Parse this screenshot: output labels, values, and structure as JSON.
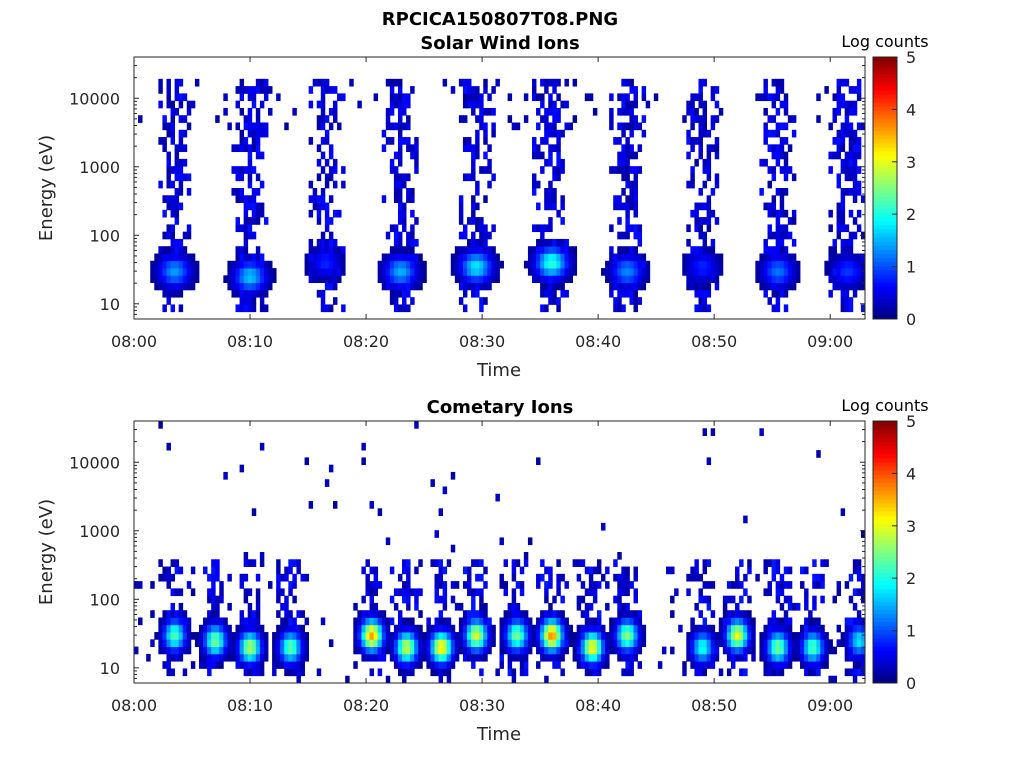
{
  "figure_title": "RPCICA150807T08.PNG",
  "chart_data": [
    {
      "type": "heatmap",
      "title": "Solar Wind Ions",
      "xlabel": "Time",
      "ylabel": "Energy (eV)",
      "x_ticks": [
        "08:00",
        "08:10",
        "08:20",
        "08:30",
        "08:40",
        "08:50",
        "09:00"
      ],
      "x_range": [
        "08:00",
        "09:03"
      ],
      "y_scale": "log",
      "y_ticks": [
        "10",
        "100",
        "1000",
        "10000"
      ],
      "y_range": [
        6,
        40000
      ],
      "colorbar": {
        "label": "Log counts",
        "ticks": [
          "0",
          "1",
          "2",
          "3",
          "4",
          "5"
        ],
        "range": [
          0,
          5
        ],
        "colormap": "jet"
      },
      "grid": false,
      "bursts": [
        {
          "t": 3.5,
          "peak_energy": 30,
          "peak_log_counts": 1.4
        },
        {
          "t": 10.0,
          "peak_energy": 25,
          "peak_log_counts": 1.6
        },
        {
          "t": 16.5,
          "peak_energy": 40,
          "peak_log_counts": 0.8
        },
        {
          "t": 23.0,
          "peak_energy": 30,
          "peak_log_counts": 1.5
        },
        {
          "t": 29.5,
          "peak_energy": 35,
          "peak_log_counts": 1.8
        },
        {
          "t": 36.0,
          "peak_energy": 40,
          "peak_log_counts": 2.1
        },
        {
          "t": 42.5,
          "peak_energy": 30,
          "peak_log_counts": 1.3
        },
        {
          "t": 49.0,
          "peak_energy": 35,
          "peak_log_counts": 0.8
        },
        {
          "t": 55.5,
          "peak_energy": 30,
          "peak_log_counts": 1.2
        },
        {
          "t": 61.5,
          "peak_energy": 30,
          "peak_log_counts": 0.9
        }
      ]
    },
    {
      "type": "heatmap",
      "title": "Cometary Ions",
      "xlabel": "Time",
      "ylabel": "Energy (eV)",
      "x_ticks": [
        "08:00",
        "08:10",
        "08:20",
        "08:30",
        "08:40",
        "08:50",
        "09:00"
      ],
      "x_range": [
        "08:00",
        "09:03"
      ],
      "y_scale": "log",
      "y_ticks": [
        "10",
        "100",
        "1000",
        "10000"
      ],
      "y_range": [
        6,
        40000
      ],
      "colorbar": {
        "label": "Log counts",
        "ticks": [
          "0",
          "1",
          "2",
          "3",
          "4",
          "5"
        ],
        "range": [
          0,
          5
        ],
        "colormap": "jet"
      },
      "grid": false,
      "bursts": [
        {
          "t": 3.5,
          "peak_energy": 30,
          "peak_log_counts": 2.3
        },
        {
          "t": 7.0,
          "peak_energy": 25,
          "peak_log_counts": 2.5
        },
        {
          "t": 10.0,
          "peak_energy": 20,
          "peak_log_counts": 2.8
        },
        {
          "t": 13.5,
          "peak_energy": 20,
          "peak_log_counts": 2.4
        },
        {
          "t": 20.5,
          "peak_energy": 30,
          "peak_log_counts": 3.6
        },
        {
          "t": 23.5,
          "peak_energy": 20,
          "peak_log_counts": 2.9
        },
        {
          "t": 26.5,
          "peak_energy": 20,
          "peak_log_counts": 3.3
        },
        {
          "t": 29.5,
          "peak_energy": 30,
          "peak_log_counts": 3.0
        },
        {
          "t": 33.0,
          "peak_energy": 30,
          "peak_log_counts": 2.5
        },
        {
          "t": 36.0,
          "peak_energy": 30,
          "peak_log_counts": 3.7
        },
        {
          "t": 39.5,
          "peak_energy": 20,
          "peak_log_counts": 3.2
        },
        {
          "t": 42.5,
          "peak_energy": 30,
          "peak_log_counts": 2.6
        },
        {
          "t": 49.0,
          "peak_energy": 20,
          "peak_log_counts": 2.0
        },
        {
          "t": 52.0,
          "peak_energy": 30,
          "peak_log_counts": 3.1
        },
        {
          "t": 55.5,
          "peak_energy": 20,
          "peak_log_counts": 2.5
        },
        {
          "t": 58.5,
          "peak_energy": 20,
          "peak_log_counts": 2.3
        },
        {
          "t": 62.5,
          "peak_energy": 25,
          "peak_log_counts": 1.8
        }
      ]
    }
  ]
}
